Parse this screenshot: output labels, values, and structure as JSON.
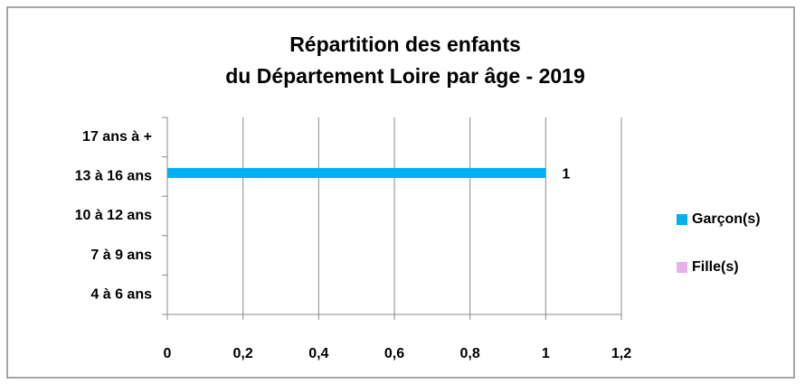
{
  "chart_data": {
    "type": "hbar",
    "title": [
      "Répartition des enfants",
      "du Département Loire par âge - 2019"
    ],
    "categories": [
      "4 à 6 ans",
      "7 à 9 ans",
      "10 à 12 ans",
      "13 à 16 ans",
      "17 ans à +"
    ],
    "series": [
      {
        "name": "Garçon(s)",
        "color": "#00b0f0",
        "values": [
          null,
          null,
          null,
          1,
          null
        ]
      },
      {
        "name": "Fille(s)",
        "color": "#e6b0ea",
        "values": [
          null,
          null,
          null,
          null,
          null
        ]
      }
    ],
    "xlim": [
      0,
      1.2
    ],
    "xticks": [
      0,
      {
        "value": 0.2,
        "label": "0,2"
      },
      {
        "value": 0.4,
        "label": "0,4"
      },
      {
        "value": 0.6,
        "label": "0,6"
      },
      {
        "value": 0.8,
        "label": "0,8"
      },
      1,
      {
        "value": 1.2,
        "label": "1,2"
      }
    ],
    "grid": true,
    "legend": "right"
  }
}
